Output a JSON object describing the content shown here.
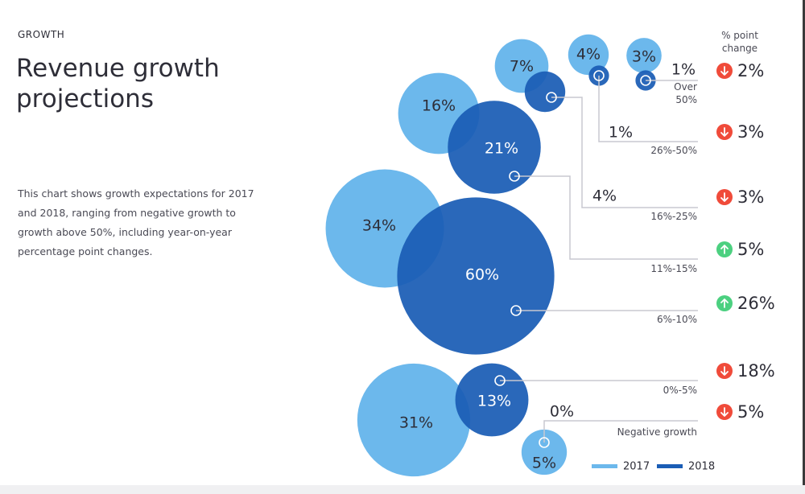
{
  "header": {
    "section": "GROWTH",
    "title": "Revenue growth projections",
    "description": "This chart shows growth expectations for 2017 and 2018, ranging from negative growth to growth above 50%, including year-on-year percentage point changes."
  },
  "colors": {
    "series_2017": "#6cb8ec",
    "series_2018": "#1a5db5",
    "up": "#4cd080",
    "down": "#f04b3a",
    "connector": "#c8c8d0"
  },
  "chart_data": {
    "type": "bubble",
    "column_header": "% point change",
    "legend": {
      "position": "bottom-right",
      "entries": [
        "2017",
        "2018"
      ]
    },
    "categories": [
      {
        "label": "Over 50%",
        "label_lines": [
          "Over",
          "50%"
        ],
        "v2017": 3,
        "v2018": 1,
        "change": 2,
        "direction": "down"
      },
      {
        "label": "26%-50%",
        "label_lines": [
          "26%-50%"
        ],
        "v2017": 4,
        "v2018": 1,
        "change": 3,
        "direction": "down"
      },
      {
        "label": "16%-25%",
        "label_lines": [
          "16%-25%"
        ],
        "v2017": 7,
        "v2018": 4,
        "change": 3,
        "direction": "down"
      },
      {
        "label": "11%-15%",
        "label_lines": [
          "11%-15%"
        ],
        "v2017": 16,
        "v2018": 21,
        "change": 5,
        "direction": "up"
      },
      {
        "label": "6%-10%",
        "label_lines": [
          "6%-10%"
        ],
        "v2017": 34,
        "v2018": 60,
        "change": 26,
        "direction": "up"
      },
      {
        "label": "0%-5%",
        "label_lines": [
          "0%-5%"
        ],
        "v2017": 31,
        "v2018": 13,
        "change": 18,
        "direction": "down"
      },
      {
        "label": "Negative growth",
        "label_lines": [
          "Negative growth"
        ],
        "v2017": 5,
        "v2018": 0,
        "change": 5,
        "direction": "down"
      }
    ]
  }
}
